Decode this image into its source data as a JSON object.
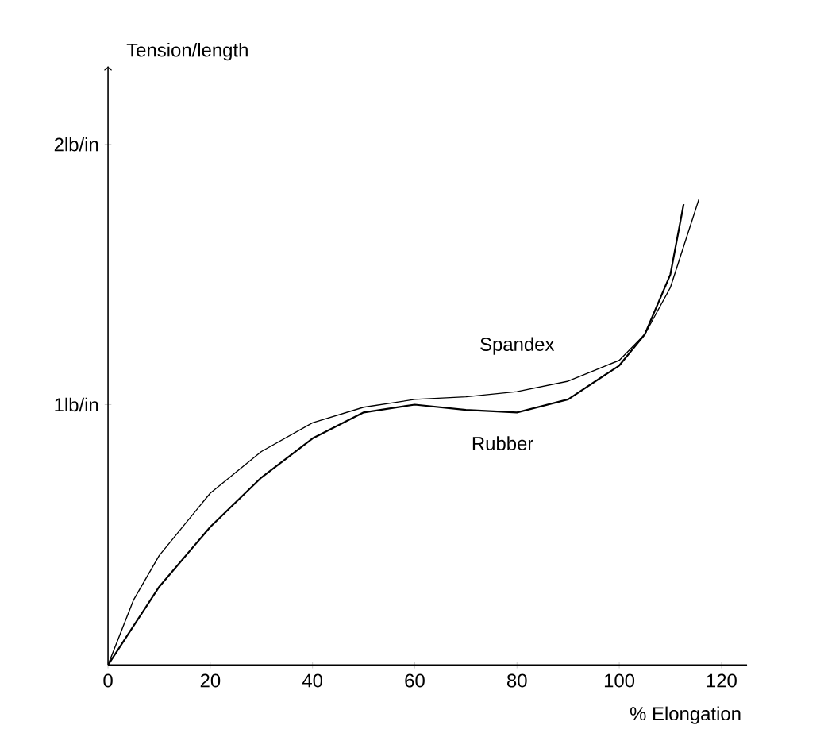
{
  "chart_data": {
    "type": "line",
    "xlabel": "% Elongation",
    "ylabel": "Tension/length",
    "xlim": [
      0,
      125
    ],
    "ylim": [
      0,
      2.3
    ],
    "xticks": [
      0,
      20,
      40,
      60,
      80,
      100,
      120
    ],
    "yticks": [
      {
        "value": 1,
        "label": "1lb/in"
      },
      {
        "value": 2,
        "label": "2lb/in"
      }
    ],
    "grid": false,
    "legend": false,
    "marker": "none",
    "line_style": "solid",
    "series": [
      {
        "name": "Spandex",
        "color": "#000000",
        "x": [
          0,
          5,
          10,
          20,
          30,
          40,
          50,
          60,
          70,
          80,
          90,
          100,
          105,
          110,
          115.6
        ],
        "values": [
          0,
          0.25,
          0.42,
          0.66,
          0.82,
          0.93,
          0.99,
          1.02,
          1.03,
          1.05,
          1.09,
          1.17,
          1.27,
          1.45,
          1.79
        ]
      },
      {
        "name": "Rubber",
        "color": "#000000",
        "x": [
          0,
          5,
          10,
          20,
          30,
          40,
          50,
          60,
          70,
          80,
          90,
          100,
          105,
          110,
          112.6
        ],
        "values": [
          0,
          0.15,
          0.3,
          0.53,
          0.72,
          0.87,
          0.97,
          1.0,
          0.98,
          0.97,
          1.02,
          1.15,
          1.27,
          1.5,
          1.77
        ]
      }
    ]
  }
}
